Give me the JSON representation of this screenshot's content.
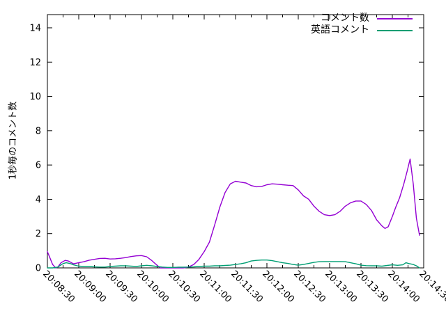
{
  "colors": {
    "background": "#ffffff",
    "axis": "#000000",
    "text": "#000000"
  },
  "chart_data": {
    "type": "line",
    "title": "",
    "xlabel": "",
    "ylabel": "1秒毎のコメント数",
    "legend_position": "top-right-inside",
    "grid": false,
    "x_seconds_range": [
      0,
      360
    ],
    "x_tick_interval_s": 30,
    "x_minor_tick_interval_s": 15,
    "x_tick_labels": [
      "20:08:30",
      "20:09:00",
      "20:09:30",
      "20:10:00",
      "20:10:30",
      "20:11:00",
      "20:11:30",
      "20:12:00",
      "20:12:30",
      "20:13:00",
      "20:13:30",
      "20:14:00",
      "20:14:30"
    ],
    "y_ticks": [
      0,
      2,
      4,
      6,
      8,
      10,
      12,
      14
    ],
    "ylim": [
      0,
      14.77
    ],
    "series": [
      {
        "name": "コメント数",
        "color": "#9400d3",
        "points": [
          [
            0,
            0.95
          ],
          [
            3,
            0.5
          ],
          [
            5,
            0.2
          ],
          [
            8,
            0
          ],
          [
            10,
            0.05
          ],
          [
            13,
            0.3
          ],
          [
            17,
            0.44
          ],
          [
            20,
            0.4
          ],
          [
            25,
            0.24
          ],
          [
            30,
            0.3
          ],
          [
            35,
            0.36
          ],
          [
            40,
            0.45
          ],
          [
            45,
            0.5
          ],
          [
            50,
            0.55
          ],
          [
            55,
            0.56
          ],
          [
            60,
            0.52
          ],
          [
            65,
            0.53
          ],
          [
            70,
            0.56
          ],
          [
            75,
            0.6
          ],
          [
            80,
            0.66
          ],
          [
            85,
            0.7
          ],
          [
            90,
            0.72
          ],
          [
            95,
            0.65
          ],
          [
            100,
            0.42
          ],
          [
            105,
            0.15
          ],
          [
            108,
            0
          ],
          [
            115,
            0
          ],
          [
            120,
            0
          ],
          [
            125,
            0
          ],
          [
            130,
            0
          ],
          [
            135,
            0.05
          ],
          [
            140,
            0.2
          ],
          [
            145,
            0.5
          ],
          [
            150,
            0.95
          ],
          [
            155,
            1.5
          ],
          [
            160,
            2.5
          ],
          [
            165,
            3.55
          ],
          [
            170,
            4.4
          ],
          [
            175,
            4.9
          ],
          [
            180,
            5.05
          ],
          [
            185,
            5.0
          ],
          [
            190,
            4.95
          ],
          [
            195,
            4.8
          ],
          [
            200,
            4.73
          ],
          [
            205,
            4.75
          ],
          [
            210,
            4.85
          ],
          [
            215,
            4.9
          ],
          [
            220,
            4.88
          ],
          [
            225,
            4.85
          ],
          [
            230,
            4.82
          ],
          [
            235,
            4.8
          ],
          [
            240,
            4.55
          ],
          [
            245,
            4.2
          ],
          [
            250,
            4.0
          ],
          [
            255,
            3.6
          ],
          [
            260,
            3.3
          ],
          [
            265,
            3.1
          ],
          [
            270,
            3.05
          ],
          [
            275,
            3.1
          ],
          [
            280,
            3.3
          ],
          [
            285,
            3.6
          ],
          [
            290,
            3.8
          ],
          [
            295,
            3.9
          ],
          [
            300,
            3.9
          ],
          [
            305,
            3.7
          ],
          [
            310,
            3.35
          ],
          [
            315,
            2.8
          ],
          [
            320,
            2.45
          ],
          [
            323,
            2.3
          ],
          [
            326,
            2.4
          ],
          [
            330,
            3.0
          ],
          [
            333,
            3.5
          ],
          [
            337,
            4.1
          ],
          [
            341,
            4.9
          ],
          [
            344,
            5.6
          ],
          [
            347,
            6.35
          ],
          [
            350,
            4.9
          ],
          [
            353,
            2.9
          ],
          [
            356,
            1.9
          ]
        ]
      },
      {
        "name": "英語コメント",
        "color": "#009e73",
        "points": [
          [
            0,
            0
          ],
          [
            5,
            0
          ],
          [
            10,
            0.05
          ],
          [
            15,
            0.25
          ],
          [
            18,
            0.3
          ],
          [
            22,
            0.25
          ],
          [
            25,
            0.18
          ],
          [
            30,
            0.1
          ],
          [
            35,
            0.08
          ],
          [
            40,
            0.08
          ],
          [
            45,
            0.06
          ],
          [
            50,
            0.05
          ],
          [
            55,
            0.05
          ],
          [
            60,
            0.08
          ],
          [
            65,
            0.1
          ],
          [
            70,
            0.12
          ],
          [
            75,
            0.12
          ],
          [
            80,
            0.1
          ],
          [
            85,
            0.08
          ],
          [
            90,
            0.12
          ],
          [
            95,
            0.15
          ],
          [
            100,
            0.12
          ],
          [
            105,
            0.08
          ],
          [
            110,
            0.05
          ],
          [
            115,
            0.03
          ],
          [
            120,
            0.03
          ],
          [
            125,
            0.04
          ],
          [
            130,
            0.04
          ],
          [
            135,
            0.05
          ],
          [
            140,
            0.06
          ],
          [
            145,
            0.08
          ],
          [
            150,
            0.1
          ],
          [
            155,
            0.1
          ],
          [
            160,
            0.12
          ],
          [
            165,
            0.12
          ],
          [
            170,
            0.14
          ],
          [
            175,
            0.16
          ],
          [
            180,
            0.2
          ],
          [
            185,
            0.24
          ],
          [
            190,
            0.3
          ],
          [
            195,
            0.4
          ],
          [
            200,
            0.44
          ],
          [
            205,
            0.46
          ],
          [
            210,
            0.46
          ],
          [
            215,
            0.42
          ],
          [
            220,
            0.36
          ],
          [
            225,
            0.3
          ],
          [
            230,
            0.26
          ],
          [
            235,
            0.2
          ],
          [
            240,
            0.16
          ],
          [
            245,
            0.2
          ],
          [
            250,
            0.26
          ],
          [
            255,
            0.32
          ],
          [
            260,
            0.36
          ],
          [
            265,
            0.37
          ],
          [
            270,
            0.37
          ],
          [
            275,
            0.37
          ],
          [
            280,
            0.37
          ],
          [
            285,
            0.36
          ],
          [
            290,
            0.3
          ],
          [
            295,
            0.24
          ],
          [
            300,
            0.16
          ],
          [
            305,
            0.13
          ],
          [
            310,
            0.12
          ],
          [
            315,
            0.12
          ],
          [
            320,
            0.1
          ],
          [
            325,
            0.14
          ],
          [
            330,
            0.18
          ],
          [
            335,
            0.15
          ],
          [
            340,
            0.18
          ],
          [
            343,
            0.3
          ],
          [
            346,
            0.25
          ],
          [
            350,
            0.2
          ],
          [
            353,
            0.12
          ],
          [
            356,
            0
          ]
        ]
      }
    ]
  }
}
